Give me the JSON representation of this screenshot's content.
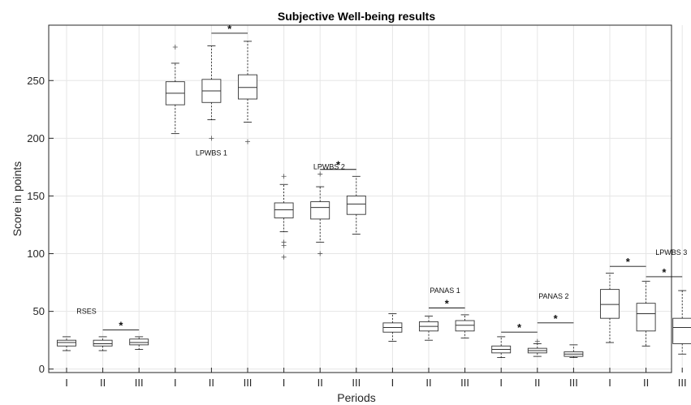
{
  "chart_data": {
    "type": "boxplot",
    "title": "Subjective Well-being results",
    "xlabel": "Periods",
    "ylabel": "Score in points",
    "ylim": [
      -3,
      298
    ],
    "yticks": [
      0,
      50,
      100,
      150,
      200,
      250
    ],
    "grid": true,
    "categories": [
      "I",
      "II",
      "III",
      "I",
      "II",
      "III",
      "I",
      "II",
      "III",
      "I",
      "II",
      "III",
      "I",
      "II",
      "III",
      "I",
      "II",
      "III"
    ],
    "groups": [
      {
        "name": "RSES",
        "boxes": [
          {
            "period": "I",
            "min": 16,
            "q1": 20,
            "median": 23,
            "q3": 25,
            "max": 28,
            "outliers": []
          },
          {
            "period": "II",
            "min": 16,
            "q1": 20,
            "median": 22,
            "q3": 25,
            "max": 28,
            "outliers": []
          },
          {
            "period": "III",
            "min": 17,
            "q1": 21,
            "median": 23,
            "q3": 26,
            "max": 28,
            "outliers": []
          }
        ],
        "significance": [
          {
            "from": "II",
            "to": "III",
            "y": 34,
            "label": "*"
          }
        ]
      },
      {
        "name": "LPWBS 1",
        "boxes": [
          {
            "period": "I",
            "min": 204,
            "q1": 229,
            "median": 239,
            "q3": 249,
            "max": 265,
            "outliers": [
              279
            ]
          },
          {
            "period": "II",
            "min": 216,
            "q1": 231,
            "median": 241,
            "q3": 251,
            "max": 280,
            "outliers": [
              200
            ]
          },
          {
            "period": "III",
            "min": 214,
            "q1": 234,
            "median": 244,
            "q3": 255,
            "max": 284,
            "outliers": [
              197
            ]
          }
        ],
        "significance": [
          {
            "from": "II",
            "to": "III",
            "y": 291,
            "label": "*"
          }
        ]
      },
      {
        "name": "LPWBS 2",
        "boxes": [
          {
            "period": "I",
            "min": 119,
            "q1": 131,
            "median": 138,
            "q3": 144,
            "max": 160,
            "outliers": [
              167,
              110,
              107,
              97
            ]
          },
          {
            "period": "II",
            "min": 110,
            "q1": 130,
            "median": 140,
            "q3": 145,
            "max": 158,
            "outliers": [
              169,
              100
            ]
          },
          {
            "period": "III",
            "min": 117,
            "q1": 134,
            "median": 143,
            "q3": 150,
            "max": 167,
            "outliers": []
          }
        ],
        "significance": [
          {
            "from": "II",
            "to": "III",
            "y": 173,
            "label": "*"
          }
        ]
      },
      {
        "name": "PANAS 1",
        "boxes": [
          {
            "period": "I",
            "min": 24,
            "q1": 32,
            "median": 36,
            "q3": 40,
            "max": 48,
            "outliers": []
          },
          {
            "period": "II",
            "min": 25,
            "q1": 33,
            "median": 37,
            "q3": 41,
            "max": 46,
            "outliers": []
          },
          {
            "period": "III",
            "min": 27,
            "q1": 33,
            "median": 38,
            "q3": 42,
            "max": 47,
            "outliers": []
          }
        ],
        "significance": [
          {
            "from": "II",
            "to": "III",
            "y": 53,
            "label": "*"
          }
        ]
      },
      {
        "name": "PANAS 2",
        "boxes": [
          {
            "period": "I",
            "min": 10,
            "q1": 14,
            "median": 17,
            "q3": 20,
            "max": 28,
            "outliers": []
          },
          {
            "period": "II",
            "min": 11,
            "q1": 14,
            "median": 16,
            "q3": 18,
            "max": 22,
            "outliers": [
              24
            ]
          },
          {
            "period": "III",
            "min": 10,
            "q1": 11,
            "median": 13,
            "q3": 15,
            "max": 21,
            "outliers": []
          }
        ],
        "significance": [
          {
            "from": "I",
            "to": "II",
            "y": 32,
            "label": "*"
          },
          {
            "from": "II",
            "to": "III",
            "y": 40,
            "label": "*"
          }
        ]
      },
      {
        "name": "LPWBS 3",
        "boxes": [
          {
            "period": "I",
            "min": 23,
            "q1": 44,
            "median": 56,
            "q3": 69,
            "max": 83,
            "outliers": []
          },
          {
            "period": "II",
            "min": 20,
            "q1": 33,
            "median": 48,
            "q3": 57,
            "max": 76,
            "outliers": []
          },
          {
            "period": "III",
            "min": 13,
            "q1": 22,
            "median": 36,
            "q3": 44,
            "max": 68,
            "outliers": []
          }
        ],
        "significance": [
          {
            "from": "I",
            "to": "II",
            "y": 89,
            "label": "*"
          },
          {
            "from": "II",
            "to": "III",
            "y": 80,
            "label": "*"
          }
        ]
      }
    ]
  }
}
